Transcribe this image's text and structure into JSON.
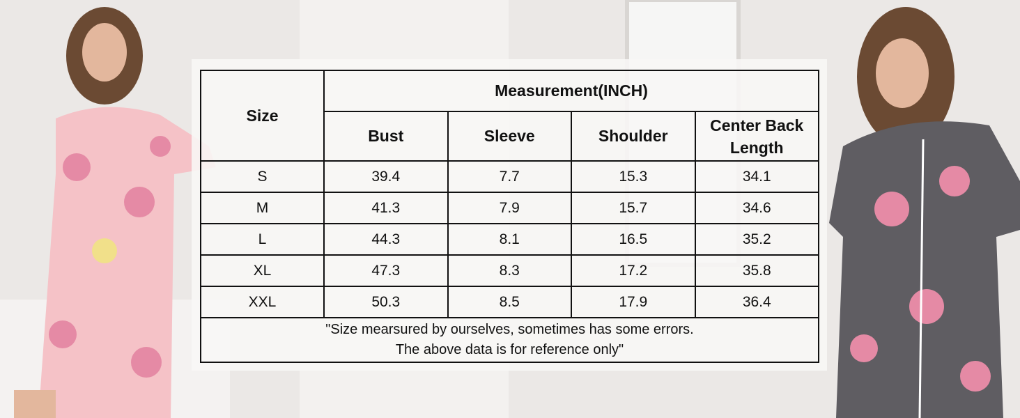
{
  "table": {
    "size_header": "Size",
    "group_header": "Measurement(INCH)",
    "columns": [
      "Bust",
      "Sleeve",
      "Shoulder",
      "Center Back Length"
    ],
    "rows": [
      {
        "size": "S",
        "values": [
          "39.4",
          "7.7",
          "15.3",
          "34.1"
        ]
      },
      {
        "size": "M",
        "values": [
          "41.3",
          "7.9",
          "15.7",
          "34.6"
        ]
      },
      {
        "size": "L",
        "values": [
          "44.3",
          "8.1",
          "16.5",
          "35.2"
        ]
      },
      {
        "size": "XL",
        "values": [
          "47.3",
          "8.3",
          "17.2",
          "35.8"
        ]
      },
      {
        "size": "XXL",
        "values": [
          "50.3",
          "8.5",
          "17.9",
          "36.4"
        ]
      }
    ],
    "note_line1": "\"Size mearsured by ourselves, sometimes has some errors.",
    "note_line2": "The above data is for reference only\""
  },
  "colors": {
    "left_dress": "#f5c2c7",
    "right_dress": "#5f5d62",
    "flower": "#e58aa5"
  }
}
